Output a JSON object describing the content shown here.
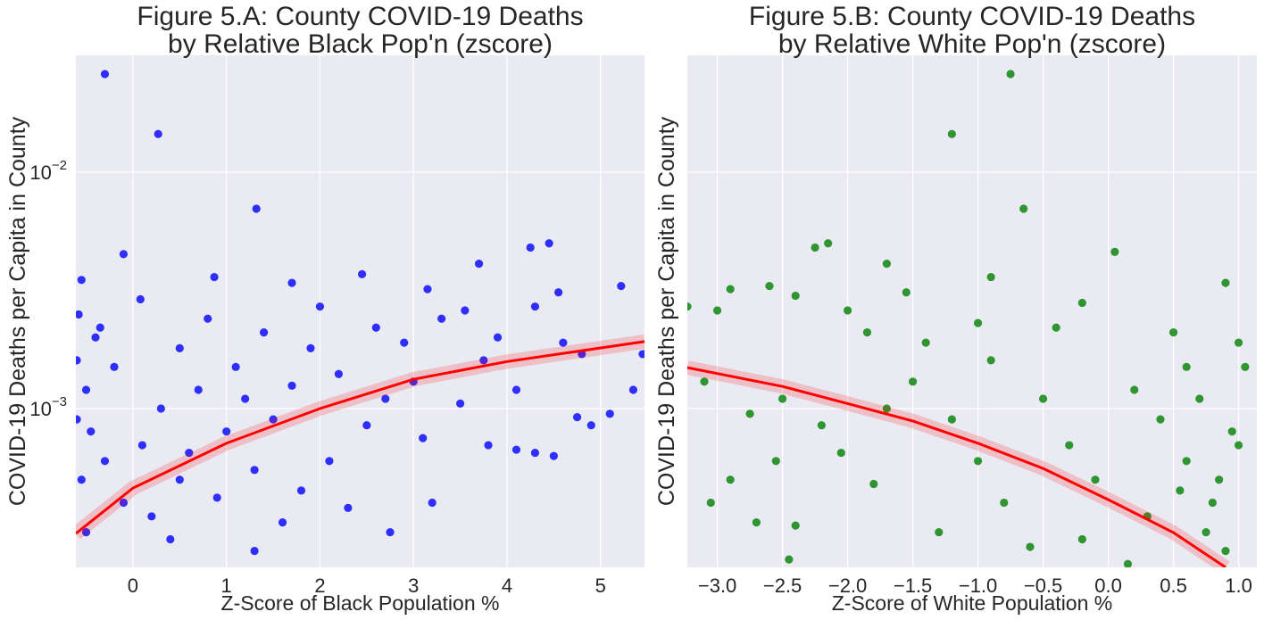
{
  "chart_data": [
    {
      "type": "scatter",
      "title": [
        "Figure 5.A: County COVID-19 Deaths",
        "by Relative Black Pop'n (zscore)"
      ],
      "xlabel": "Z-Score of Black Population %",
      "ylabel": "COVID-19 Deaths per Capita in County",
      "log_y": true,
      "grid": true,
      "color": "blue",
      "ytick_labels": true,
      "xlim": [
        -0.61,
        5.47
      ],
      "ylim": [
        0.000213,
        0.0312
      ],
      "xticks": [
        0,
        1,
        2,
        3,
        4,
        5
      ],
      "yticks": [
        {
          "value": 0.01,
          "label": "10",
          "exponent": "−2"
        },
        {
          "value": 0.001,
          "label": "10",
          "exponent": "−3"
        }
      ],
      "x": [
        -0.3,
        0.27,
        1.32,
        -0.1,
        4.25,
        4.45,
        3.7,
        2.45,
        0.87,
        1.7,
        5.22,
        3.15,
        4.55,
        3.55,
        0.08,
        2.0,
        0.8,
        4.3,
        3.3,
        1.4,
        2.6,
        3.9,
        4.8,
        5.45,
        4.6,
        2.9,
        1.9,
        0.5,
        1.1,
        2.2,
        3.0,
        3.75,
        4.1,
        5.35,
        4.75,
        5.1,
        4.9,
        4.3,
        4.5,
        4.1,
        3.8,
        3.2,
        2.75,
        3.1,
        2.5,
        1.5,
        1.0,
        0.3,
        0.6,
        1.3,
        2.1,
        1.8,
        0.9,
        0.2,
        1.3,
        1.6,
        2.3,
        -0.4,
        -0.5,
        -0.45,
        -0.55,
        -0.5,
        -0.3,
        -0.2,
        -0.35,
        -0.55,
        0.1,
        0.5,
        -0.1,
        0.7,
        1.2,
        2.7,
        3.5,
        1.7,
        0.4,
        -0.58,
        -0.6,
        -0.6
      ],
      "values": [
        0.026,
        0.0145,
        0.007,
        0.0045,
        0.0048,
        0.005,
        0.0041,
        0.0037,
        0.0036,
        0.0034,
        0.0033,
        0.0032,
        0.0031,
        0.0026,
        0.0029,
        0.0027,
        0.0024,
        0.0027,
        0.0024,
        0.0021,
        0.0022,
        0.002,
        0.0017,
        0.0017,
        0.0019,
        0.0019,
        0.0018,
        0.0018,
        0.0015,
        0.0014,
        0.0013,
        0.0016,
        0.0012,
        0.0012,
        0.00092,
        0.00095,
        0.00085,
        0.00065,
        0.00063,
        0.00067,
        0.0007,
        0.0004,
        0.0003,
        0.00075,
        0.00085,
        0.0009,
        0.0008,
        0.001,
        0.00065,
        0.00055,
        0.0006,
        0.00045,
        0.00042,
        0.00035,
        0.00025,
        0.00033,
        0.00038,
        0.002,
        0.0012,
        0.0008,
        0.0005,
        0.0003,
        0.0006,
        0.0015,
        0.0022,
        0.0035,
        0.0007,
        0.0005,
        0.0004,
        0.0012,
        0.0011,
        0.0011,
        0.00105,
        0.00125,
        0.00028,
        0.0025,
        0.0016,
        0.0009
      ],
      "fit": {
        "color": "red",
        "x": [
          -0.61,
          0,
          1,
          2,
          3,
          4,
          5.47
        ],
        "values": [
          0.000296,
          0.000461,
          0.000713,
          0.001,
          0.00133,
          0.00158,
          0.00192
        ]
      }
    },
    {
      "type": "scatter",
      "title": [
        "Figure 5.B: County COVID-19 Deaths",
        "by Relative White Pop'n (zscore)"
      ],
      "xlabel": "Z-Score of White Population %",
      "ylabel": "COVID-19 Deaths per Capita in County",
      "log_y": true,
      "grid": true,
      "color": "green",
      "ytick_labels": false,
      "xlim": [
        -3.23,
        1.14
      ],
      "ylim": [
        0.000213,
        0.0312
      ],
      "xticks": [
        {
          "value": -3,
          "label": "−3.0"
        },
        {
          "value": -2.5,
          "label": "−2.5"
        },
        {
          "value": -2,
          "label": "−2.0"
        },
        {
          "value": -1.5,
          "label": "−1.5"
        },
        {
          "value": -1,
          "label": "−1.0"
        },
        {
          "value": -0.5,
          "label": "−0.5"
        },
        {
          "value": 0,
          "label": "0.0"
        },
        0.5,
        {
          "value": 1,
          "label": "1.0"
        }
      ],
      "yticks": [
        0.01,
        0.001
      ],
      "x": [
        -0.75,
        -1.2,
        -0.65,
        0.05,
        -2.15,
        -2.25,
        -1.7,
        -0.9,
        0.9,
        -2.4,
        -2.9,
        -2.6,
        -3.0,
        -3.23,
        -1.55,
        -0.2,
        -1.85,
        -2.0,
        -1.0,
        -0.4,
        0.5,
        1.0,
        -3.1,
        -2.5,
        -2.75,
        -2.2,
        -2.05,
        -2.55,
        -2.9,
        -3.05,
        -2.7,
        -2.4,
        -2.45,
        -1.8,
        -1.5,
        -1.2,
        -1.0,
        -0.8,
        -0.5,
        -0.3,
        -0.1,
        0.2,
        0.4,
        0.6,
        0.8,
        0.9,
        0.95,
        0.7,
        1.05,
        0.3,
        -0.2,
        -0.6,
        -1.3,
        -1.7,
        0.85,
        0.75,
        1.0,
        0.6,
        -0.9,
        -1.4,
        0.15,
        0.55
      ],
      "values": [
        0.026,
        0.0145,
        0.007,
        0.0046,
        0.005,
        0.0048,
        0.0041,
        0.0036,
        0.0034,
        0.003,
        0.0032,
        0.0033,
        0.0026,
        0.0027,
        0.0031,
        0.0028,
        0.0021,
        0.0026,
        0.0023,
        0.0022,
        0.0021,
        0.0019,
        0.0013,
        0.0011,
        0.00095,
        0.00085,
        0.00065,
        0.0006,
        0.0005,
        0.0004,
        0.00033,
        0.00032,
        0.00023,
        0.00048,
        0.0013,
        0.0009,
        0.0006,
        0.0004,
        0.0011,
        0.0007,
        0.0005,
        0.0012,
        0.0009,
        0.0006,
        0.0004,
        0.00025,
        0.0008,
        0.0011,
        0.0015,
        0.00035,
        0.00028,
        0.00026,
        0.0003,
        0.001,
        0.0005,
        0.0003,
        0.0007,
        0.0015,
        0.0016,
        0.0019,
        0.00022,
        0.00045
      ],
      "fit": {
        "color": "red",
        "x": [
          -3.23,
          -2.5,
          -2.0,
          -1.5,
          -1.0,
          -0.5,
          0,
          0.5,
          0.9
        ],
        "values": [
          0.00149,
          0.00124,
          0.00105,
          0.000886,
          0.000713,
          0.000558,
          0.000412,
          0.000299,
          0.000213
        ]
      }
    }
  ]
}
